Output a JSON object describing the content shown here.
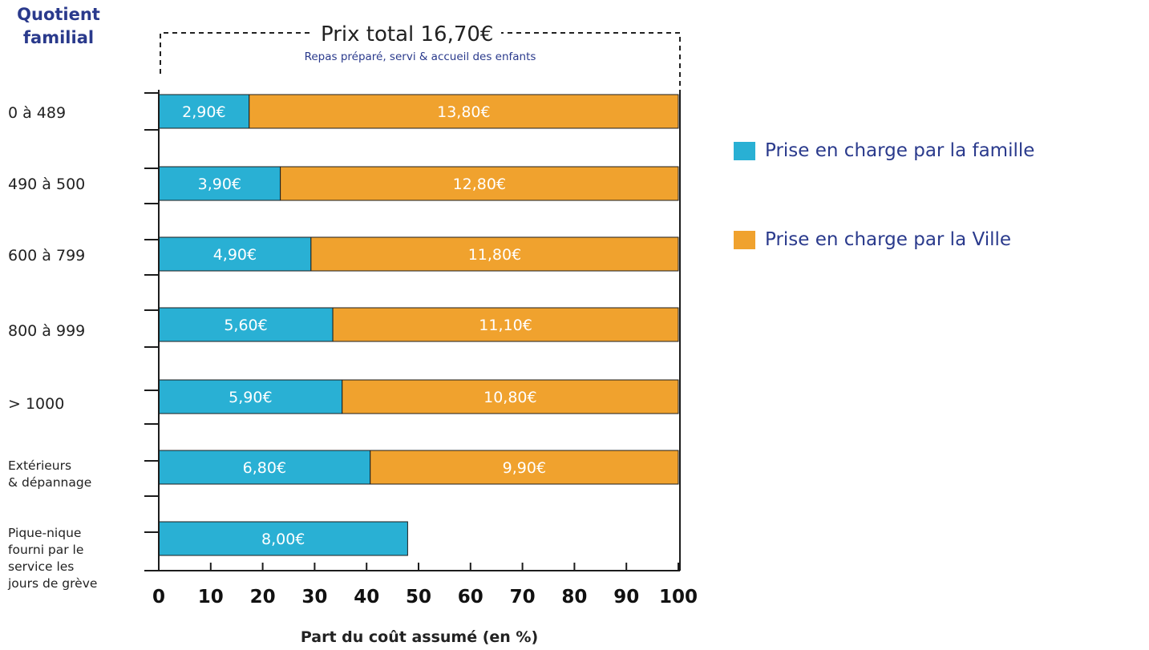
{
  "chart_data": {
    "type": "bar",
    "orientation": "horizontal",
    "stacked": true,
    "y_title_lines": [
      "Quotient",
      "familial"
    ],
    "categories": [
      [
        "0 à 489"
      ],
      [
        "490 à 500"
      ],
      [
        "600 à 799"
      ],
      [
        "800 à 999"
      ],
      [
        "> 1000"
      ],
      [
        "Extérieurs",
        "& dépannage"
      ],
      [
        "Pique-nique",
        "fourni par le",
        "service les",
        "jours de grève"
      ]
    ],
    "series": [
      {
        "name": "Prise en charge par la famille",
        "color": "#29b0d4",
        "values": [
          17.4,
          23.4,
          29.3,
          33.5,
          35.3,
          40.7,
          47.9
        ],
        "labels": [
          "2,90€",
          "3,90€",
          "4,90€",
          "5,60€",
          "5,90€",
          "6,80€",
          "8,00€"
        ]
      },
      {
        "name": "Prise en charge par la Ville",
        "color": "#f0a22e",
        "values": [
          82.6,
          76.6,
          70.7,
          66.5,
          64.7,
          59.3,
          null
        ],
        "labels": [
          "13,80€",
          "12,80€",
          "11,80€",
          "11,10€",
          "10,80€",
          "9,90€",
          ""
        ]
      }
    ],
    "bracket_title": "Prix total 16,70€",
    "bracket_subtitle": "Repas préparé, servi & accueil des enfants",
    "xlabel": "Part du coût assumé (en %)",
    "xlim": [
      0,
      100
    ],
    "xticks": [
      0,
      10,
      20,
      30,
      40,
      50,
      60,
      70,
      80,
      90,
      100
    ],
    "legend_position": "right",
    "grid": false
  }
}
